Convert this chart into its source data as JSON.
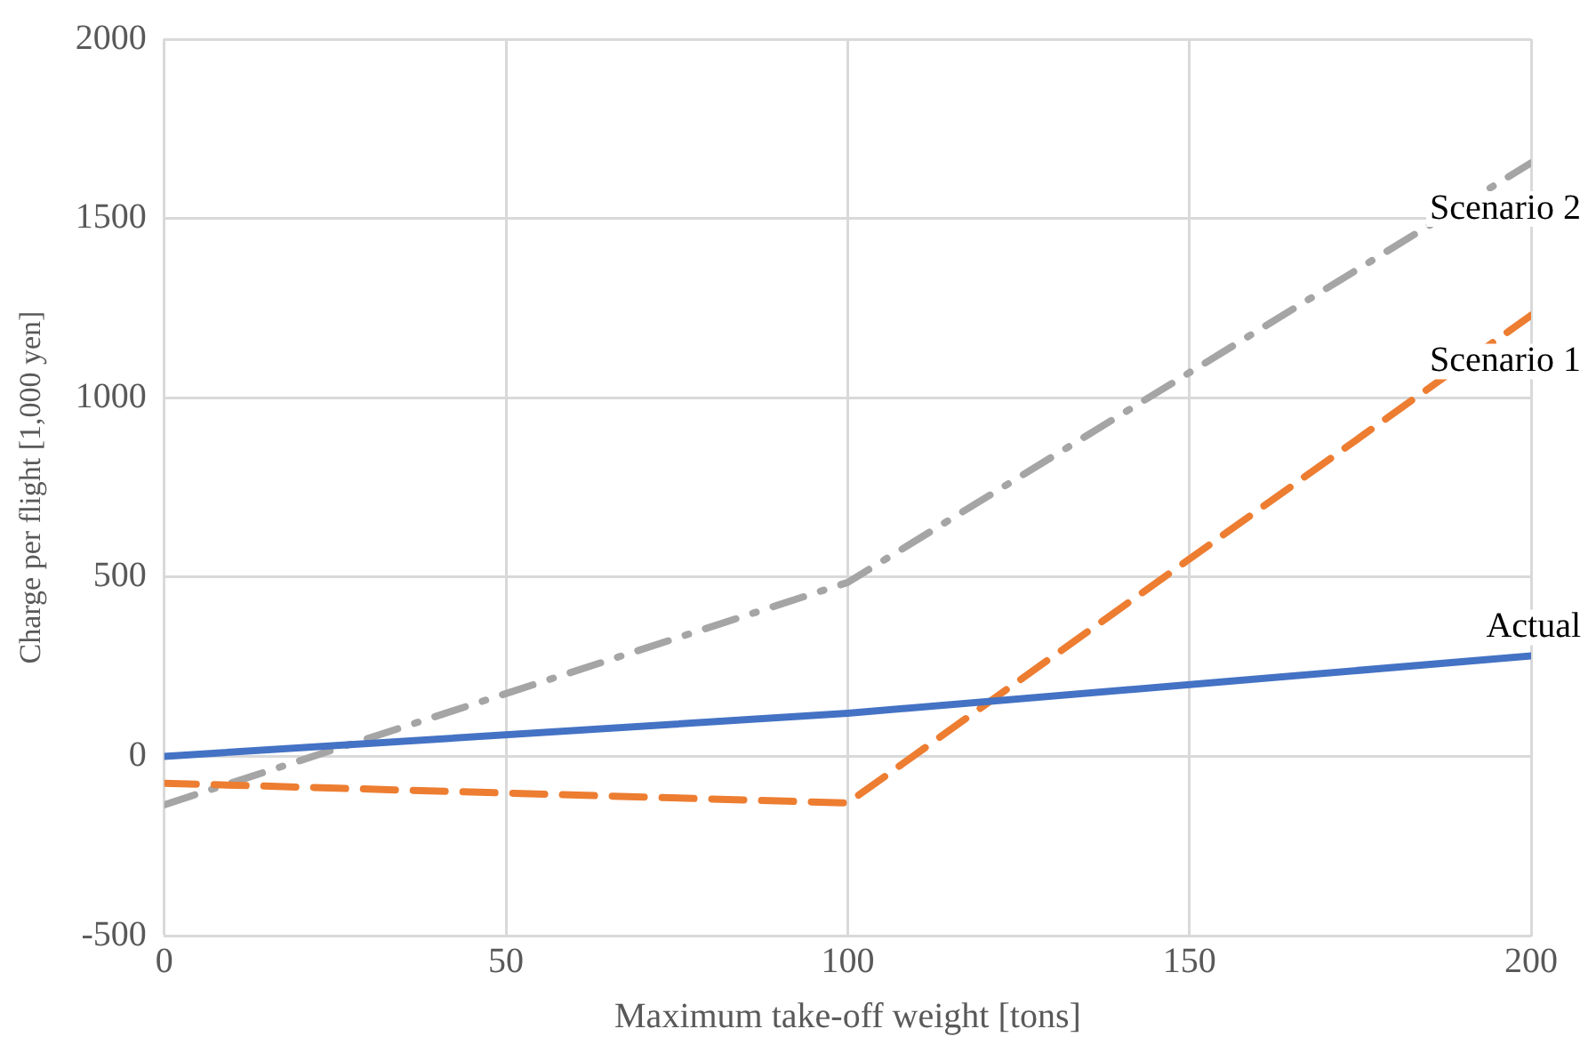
{
  "chart_data": {
    "type": "line",
    "xlabel": "Maximum take-off weight [tons]",
    "ylabel": "Charge per flight [1,000 yen]",
    "x": [
      0,
      100,
      200
    ],
    "series": [
      {
        "name": "Actual",
        "color": "#4472c4",
        "line_style": "solid",
        "values": [
          0,
          120,
          280
        ]
      },
      {
        "name": "Scenario 1",
        "color": "#ed7d31",
        "line_style": "dashed",
        "values": [
          -75,
          -130,
          1230
        ]
      },
      {
        "name": "Scenario 2",
        "color": "#a5a5a5",
        "line_style": "dashdot",
        "values": [
          -135,
          485,
          1655
        ]
      }
    ],
    "xlim": [
      0,
      200
    ],
    "xticks": [
      0,
      50,
      100,
      150,
      200
    ],
    "ylim": [
      -500,
      2000
    ],
    "yticks": [
      -500,
      0,
      500,
      1000,
      1500,
      2000
    ],
    "grid": true,
    "legend": false,
    "marker": "none"
  }
}
